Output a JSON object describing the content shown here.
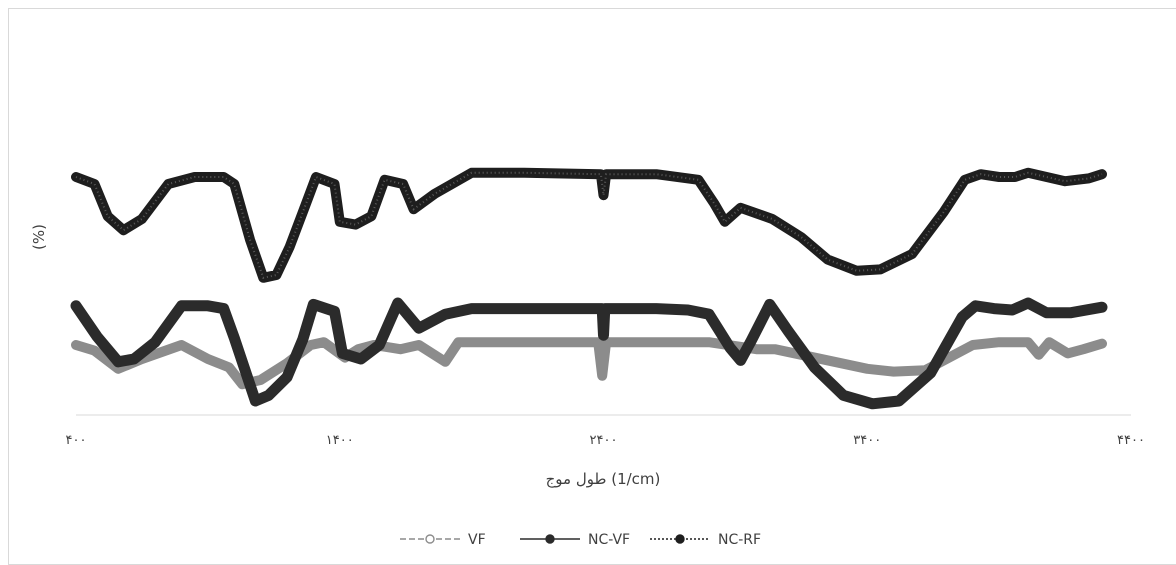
{
  "chart_data": {
    "type": "line",
    "title": "",
    "xlabel": "طول موج (1/cm)",
    "ylabel": "(%)",
    "xlim": [
      400,
      4400
    ],
    "x_ticks": [
      {
        "value": 400,
        "label": "۴۰۰"
      },
      {
        "value": 1400,
        "label": "۱۴۰۰"
      },
      {
        "value": 2400,
        "label": "۲۴۰۰"
      },
      {
        "value": 3400,
        "label": "۳۴۰۰"
      },
      {
        "value": 4400,
        "label": "۴۴۰۰"
      }
    ],
    "ylim": [
      0,
      100
    ],
    "grid": false,
    "legend_position": "bottom",
    "series": [
      {
        "name": "VF",
        "color": "#8c8c8c",
        "marker": "open-circle",
        "dash": "dashed",
        "points": [
          [
            400,
            50
          ],
          [
            470,
            46
          ],
          [
            560,
            33
          ],
          [
            650,
            40
          ],
          [
            800,
            50
          ],
          [
            900,
            40
          ],
          [
            980,
            34
          ],
          [
            1030,
            22
          ],
          [
            1100,
            25
          ],
          [
            1200,
            37
          ],
          [
            1290,
            50
          ],
          [
            1340,
            52
          ],
          [
            1420,
            41
          ],
          [
            1470,
            47
          ],
          [
            1530,
            50
          ],
          [
            1630,
            47
          ],
          [
            1700,
            50
          ],
          [
            1800,
            38
          ],
          [
            1850,
            52
          ],
          [
            1900,
            52
          ],
          [
            2000,
            52
          ],
          [
            2200,
            52
          ],
          [
            2380,
            52
          ],
          [
            2395,
            28
          ],
          [
            2410,
            52
          ],
          [
            2600,
            52
          ],
          [
            2800,
            52
          ],
          [
            2980,
            47
          ],
          [
            3050,
            47
          ],
          [
            3300,
            37
          ],
          [
            3400,
            33
          ],
          [
            3500,
            31
          ],
          [
            3620,
            32
          ],
          [
            3800,
            50
          ],
          [
            3900,
            52
          ],
          [
            4010,
            52
          ],
          [
            4050,
            43
          ],
          [
            4090,
            52
          ],
          [
            4160,
            44
          ],
          [
            4220,
            47
          ],
          [
            4290,
            51
          ]
        ]
      },
      {
        "name": "NC-VF",
        "color": "#2b2b2b",
        "marker": "filled-circle",
        "dash": "solid",
        "points": [
          [
            400,
            78
          ],
          [
            480,
            56
          ],
          [
            560,
            38
          ],
          [
            620,
            40
          ],
          [
            700,
            52
          ],
          [
            800,
            78
          ],
          [
            900,
            78
          ],
          [
            960,
            76
          ],
          [
            1000,
            55
          ],
          [
            1080,
            10
          ],
          [
            1130,
            14
          ],
          [
            1200,
            27
          ],
          [
            1260,
            54
          ],
          [
            1300,
            79
          ],
          [
            1380,
            74
          ],
          [
            1410,
            44
          ],
          [
            1480,
            40
          ],
          [
            1550,
            50
          ],
          [
            1620,
            80
          ],
          [
            1700,
            62
          ],
          [
            1800,
            72
          ],
          [
            1900,
            76
          ],
          [
            2000,
            76
          ],
          [
            2200,
            76
          ],
          [
            2395,
            76
          ],
          [
            2400,
            57
          ],
          [
            2405,
            76
          ],
          [
            2600,
            76
          ],
          [
            2720,
            75
          ],
          [
            2800,
            72
          ],
          [
            2880,
            48
          ],
          [
            2920,
            39
          ],
          [
            2960,
            53
          ],
          [
            3030,
            79
          ],
          [
            3100,
            60
          ],
          [
            3200,
            34
          ],
          [
            3310,
            14
          ],
          [
            3420,
            8
          ],
          [
            3520,
            10
          ],
          [
            3640,
            30
          ],
          [
            3760,
            70
          ],
          [
            3810,
            78
          ],
          [
            3880,
            76
          ],
          [
            3950,
            75
          ],
          [
            4010,
            80
          ],
          [
            4080,
            73
          ],
          [
            4170,
            73
          ],
          [
            4290,
            77
          ]
        ]
      },
      {
        "name": "NC-RF",
        "color": "#1e1e1e",
        "marker": "filled-circle",
        "dash": "dotted",
        "points": [
          [
            400,
            170
          ],
          [
            470,
            165
          ],
          [
            520,
            142
          ],
          [
            580,
            132
          ],
          [
            650,
            140
          ],
          [
            750,
            165
          ],
          [
            850,
            170
          ],
          [
            960,
            170
          ],
          [
            1000,
            165
          ],
          [
            1060,
            125
          ],
          [
            1110,
            98
          ],
          [
            1160,
            100
          ],
          [
            1210,
            120
          ],
          [
            1270,
            150
          ],
          [
            1310,
            170
          ],
          [
            1380,
            165
          ],
          [
            1400,
            138
          ],
          [
            1460,
            136
          ],
          [
            1520,
            142
          ],
          [
            1570,
            168
          ],
          [
            1640,
            165
          ],
          [
            1680,
            147
          ],
          [
            1760,
            158
          ],
          [
            1900,
            173
          ],
          [
            2100,
            173
          ],
          [
            2390,
            172
          ],
          [
            2400,
            157
          ],
          [
            2410,
            172
          ],
          [
            2600,
            172
          ],
          [
            2760,
            168
          ],
          [
            2820,
            151
          ],
          [
            2860,
            138
          ],
          [
            2920,
            148
          ],
          [
            3040,
            140
          ],
          [
            3150,
            127
          ],
          [
            3250,
            111
          ],
          [
            3360,
            103
          ],
          [
            3450,
            104
          ],
          [
            3570,
            115
          ],
          [
            3690,
            145
          ],
          [
            3770,
            168
          ],
          [
            3830,
            172
          ],
          [
            3900,
            170
          ],
          [
            3960,
            170
          ],
          [
            4010,
            173
          ],
          [
            4080,
            170
          ],
          [
            4150,
            167
          ],
          [
            4240,
            169
          ],
          [
            4290,
            172
          ]
        ]
      }
    ]
  }
}
